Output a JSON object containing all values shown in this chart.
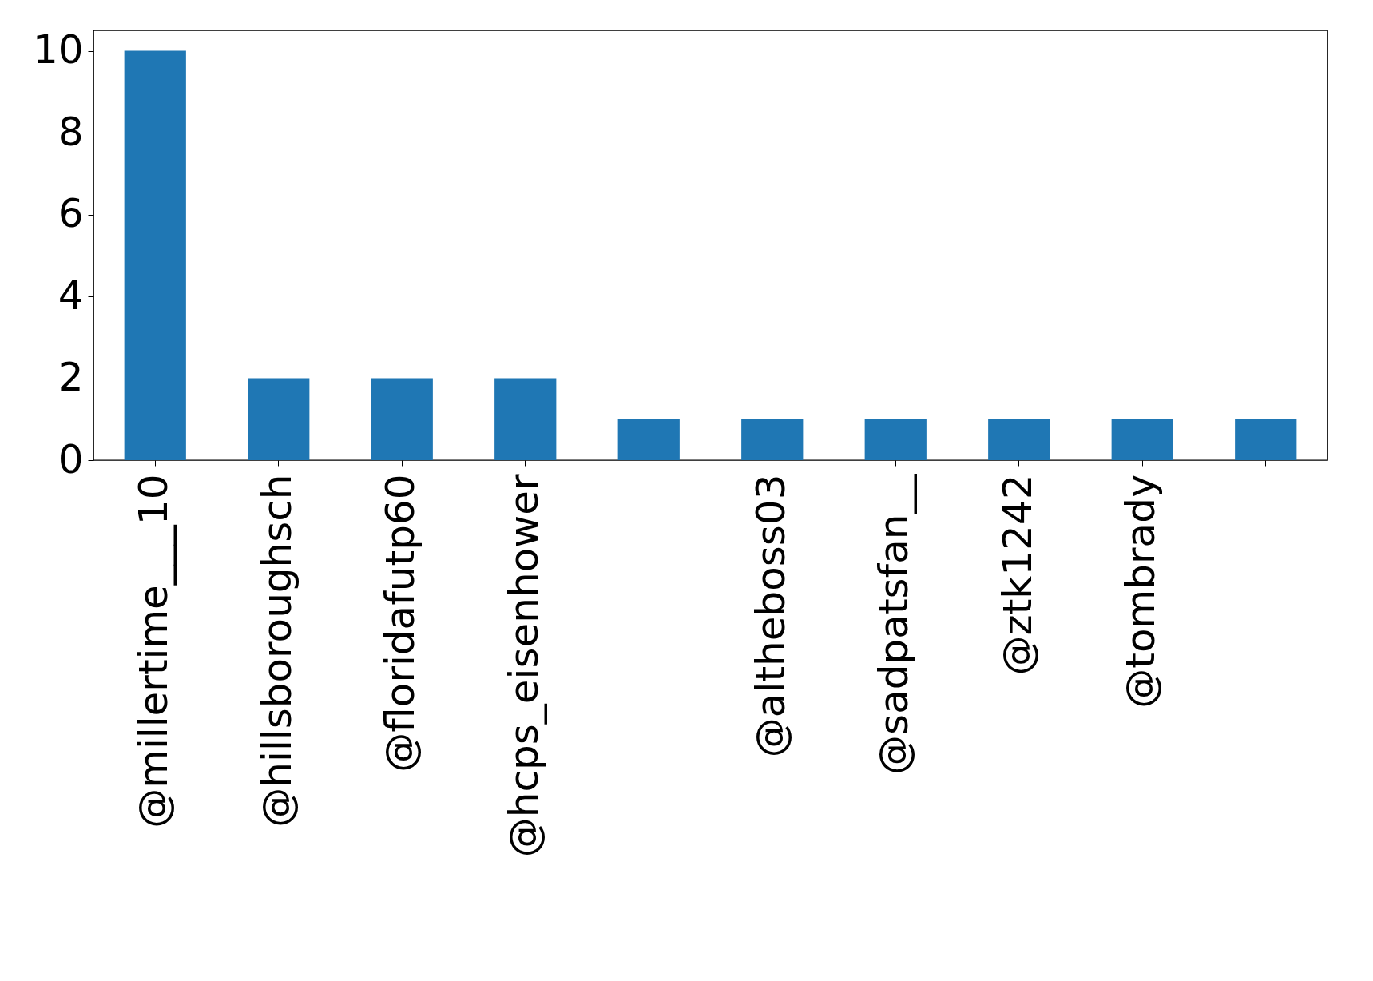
{
  "chart_data": {
    "type": "bar",
    "categories": [
      "@millertime___10",
      "@hillsboroughsch",
      "@floridafutp60",
      "@hcps_eisenhower",
      null,
      "@altheboss03",
      "@sadpatsfan__",
      "@ztk1242",
      "@tombrady",
      null
    ],
    "values": [
      10,
      2,
      2,
      2,
      1,
      1,
      1,
      1,
      1,
      1
    ],
    "color": "#1f77b4",
    "ylim": [
      0,
      10.5
    ],
    "yticks": [
      0,
      2,
      4,
      6,
      8,
      10
    ],
    "grid": false
  }
}
